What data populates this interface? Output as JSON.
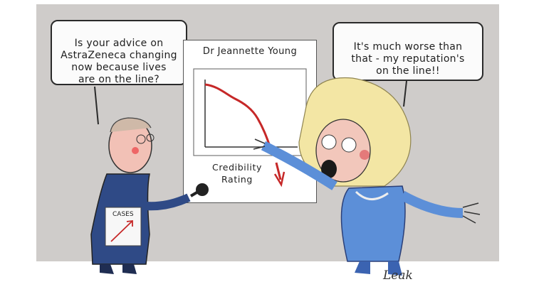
{
  "speech": {
    "reporter": "Is your advice on\nAstraZeneca changing\nnow because lives\nare on the line?",
    "official": "It's much worse than\nthat - my reputation's\non the line!!"
  },
  "board": {
    "title": "Dr Jeannette Young",
    "rating_label": "Credibility\nRating"
  },
  "placard": {
    "label": "CASES"
  },
  "signature": "Leak",
  "colors": {
    "background": "#cfccca",
    "trend_red": "#c62828",
    "jacket_blue": "#2f4a86",
    "jacket_light": "#5c8fd8",
    "hair": "#f3e6a4"
  }
}
